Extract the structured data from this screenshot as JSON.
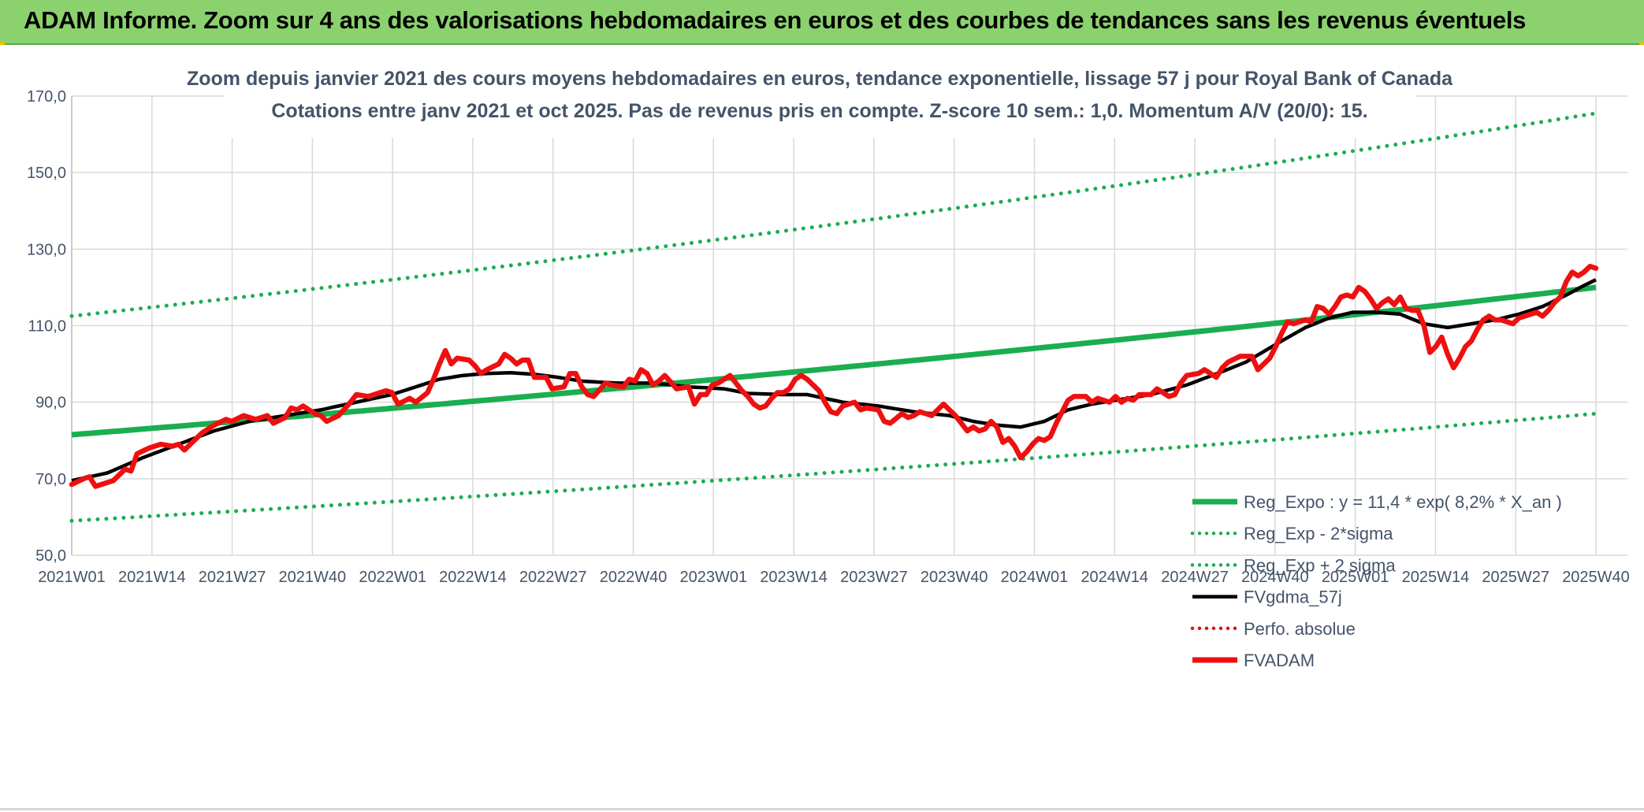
{
  "header": {
    "title": "ADAM Informe. Zoom sur 4 ans des valorisations hebdomadaires en euros et des courbes de tendances sans les revenus éventuels"
  },
  "colors": {
    "header_bg": "#8bd26e",
    "reg_expo": "#1aae4f",
    "fvgdma": "#000000",
    "perfo": "#e01010",
    "fvadam": "#ee1010",
    "grid": "#d9d9d9",
    "text": "#44546a"
  },
  "chart_data": {
    "type": "line",
    "title_line1": "Zoom depuis janvier 2021 des cours moyens hebdomadaires en euros, tendance exponentielle, lissage 57 j pour Royal Bank of Canada",
    "title_line2": "Cotations entre janv 2021 et oct 2025. Pas de revenus pris en compte. Z-score 10 sem.: 1,0. Momentum A/V (20/0): 15.",
    "ylim": [
      50,
      170
    ],
    "yticks": [
      "50,0",
      "70,0",
      "90,0",
      "110,0",
      "130,0",
      "150,0",
      "170,0"
    ],
    "ytick_values": [
      50,
      70,
      90,
      110,
      130,
      150,
      170
    ],
    "xticks": [
      "2021W01",
      "2021W14",
      "2021W27",
      "2021W40",
      "2022W01",
      "2022W14",
      "2022W27",
      "2022W40",
      "2023W01",
      "2023W14",
      "2023W27",
      "2023W40",
      "2024W01",
      "2024W14",
      "2024W27",
      "2024W40",
      "2025W01",
      "2025W14",
      "2025W27",
      "2025W40"
    ],
    "weeks_total": 248,
    "grid": true,
    "legend": [
      {
        "name": "Reg_Expo : y = 11,4 * exp( 8,2% * X_an )",
        "style": "solid-thick",
        "color": "#1aae4f"
      },
      {
        "name": "Reg_Exp - 2*sigma",
        "style": "dotted",
        "color": "#1aae4f"
      },
      {
        "name": "Reg_Exp + 2 sigma",
        "style": "dotted",
        "color": "#1aae4f"
      },
      {
        "name": "FVgdma_57j",
        "style": "solid",
        "color": "#000000"
      },
      {
        "name": "Perfo. absolue",
        "style": "dotted",
        "color": "#e01010"
      },
      {
        "name": "FVADAM",
        "style": "solid-thick",
        "color": "#ee1010"
      }
    ],
    "reg_expo": {
      "start": 81.5,
      "end": 120.0
    },
    "reg_minus": {
      "start": 59.0,
      "end": 87.0
    },
    "reg_plus": {
      "start": 112.5,
      "end": 165.5
    },
    "fvadam_anchors": [
      [
        0,
        68.5
      ],
      [
        2,
        70.0
      ],
      [
        3,
        70.5
      ],
      [
        4,
        68.0
      ],
      [
        7,
        69.5
      ],
      [
        9,
        72.5
      ],
      [
        10,
        72.0
      ],
      [
        11,
        76.5
      ],
      [
        13,
        78.0
      ],
      [
        15,
        79.0
      ],
      [
        17,
        78.5
      ],
      [
        18,
        79.0
      ],
      [
        19,
        77.5
      ],
      [
        20,
        79.0
      ],
      [
        22,
        82.0
      ],
      [
        24,
        84.0
      ],
      [
        26,
        85.5
      ],
      [
        27,
        85.0
      ],
      [
        29,
        86.5
      ],
      [
        31,
        85.5
      ],
      [
        33,
        86.5
      ],
      [
        34,
        84.5
      ],
      [
        36,
        86.0
      ],
      [
        37,
        88.5
      ],
      [
        38,
        88.0
      ],
      [
        39,
        89.0
      ],
      [
        41,
        87.0
      ],
      [
        42,
        86.5
      ],
      [
        43,
        85.0
      ],
      [
        45,
        86.5
      ],
      [
        47,
        90.0
      ],
      [
        48,
        92.0
      ],
      [
        50,
        91.5
      ],
      [
        52,
        92.5
      ],
      [
        53,
        93.0
      ],
      [
        54,
        92.5
      ],
      [
        55,
        89.5
      ],
      [
        57,
        91.0
      ],
      [
        58,
        90.0
      ],
      [
        60,
        92.5
      ],
      [
        61,
        96.0
      ],
      [
        62,
        100.0
      ],
      [
        63,
        103.5
      ],
      [
        64,
        100.0
      ],
      [
        65,
        101.5
      ],
      [
        67,
        101.0
      ],
      [
        68,
        99.5
      ],
      [
        69,
        97.5
      ],
      [
        70,
        98.5
      ],
      [
        72,
        100.0
      ],
      [
        73,
        102.5
      ],
      [
        74,
        101.5
      ],
      [
        75,
        100.0
      ],
      [
        76,
        101.0
      ],
      [
        77,
        101.0
      ],
      [
        78,
        96.5
      ],
      [
        80,
        96.5
      ],
      [
        81,
        93.5
      ],
      [
        83,
        94.0
      ],
      [
        84,
        97.5
      ],
      [
        85,
        97.5
      ],
      [
        86,
        94.0
      ],
      [
        87,
        92.0
      ],
      [
        88,
        91.5
      ],
      [
        90,
        95.0
      ],
      [
        91,
        94.5
      ],
      [
        93,
        94.0
      ],
      [
        94,
        96.0
      ],
      [
        95,
        95.5
      ],
      [
        96,
        98.5
      ],
      [
        97,
        97.5
      ],
      [
        98,
        94.5
      ],
      [
        99,
        95.5
      ],
      [
        100,
        97.0
      ],
      [
        102,
        93.5
      ],
      [
        104,
        94.0
      ],
      [
        105,
        89.5
      ],
      [
        106,
        92.0
      ],
      [
        107,
        92.0
      ],
      [
        108,
        94.5
      ],
      [
        109,
        95.0
      ],
      [
        111,
        97.0
      ],
      [
        113,
        93.0
      ],
      [
        114,
        91.5
      ],
      [
        115,
        89.5
      ],
      [
        116,
        88.5
      ],
      [
        117,
        89.0
      ],
      [
        118,
        91.0
      ],
      [
        119,
        92.5
      ],
      [
        120,
        92.5
      ],
      [
        121,
        93.5
      ],
      [
        122,
        96.0
      ],
      [
        123,
        97.0
      ],
      [
        124,
        96.0
      ],
      [
        126,
        93.0
      ],
      [
        127,
        90.0
      ],
      [
        128,
        87.5
      ],
      [
        129,
        87.0
      ],
      [
        130,
        89.0
      ],
      [
        131,
        89.5
      ],
      [
        132,
        90.0
      ],
      [
        133,
        88.0
      ],
      [
        134,
        88.5
      ],
      [
        136,
        88.0
      ],
      [
        137,
        85.0
      ],
      [
        138,
        84.5
      ],
      [
        140,
        87.0
      ],
      [
        141,
        86.0
      ],
      [
        142,
        86.5
      ],
      [
        143,
        87.5
      ],
      [
        144,
        87.0
      ],
      [
        145,
        86.5
      ],
      [
        147,
        89.5
      ],
      [
        149,
        86.5
      ],
      [
        150,
        84.5
      ],
      [
        151,
        82.5
      ],
      [
        152,
        83.5
      ],
      [
        153,
        82.5
      ],
      [
        154,
        83.0
      ],
      [
        155,
        85.0
      ],
      [
        156,
        83.5
      ],
      [
        157,
        79.5
      ],
      [
        158,
        80.5
      ],
      [
        159,
        78.5
      ],
      [
        160,
        75.5
      ],
      [
        161,
        77.0
      ],
      [
        162,
        79.0
      ],
      [
        163,
        80.5
      ],
      [
        164,
        80.0
      ],
      [
        165,
        81.0
      ],
      [
        166,
        84.5
      ],
      [
        167,
        87.5
      ],
      [
        168,
        90.5
      ],
      [
        169,
        91.5
      ],
      [
        171,
        91.5
      ],
      [
        172,
        90.0
      ],
      [
        173,
        91.0
      ],
      [
        175,
        90.0
      ],
      [
        176,
        91.5
      ],
      [
        177,
        90.0
      ],
      [
        178,
        91.0
      ],
      [
        179,
        90.5
      ],
      [
        180,
        92.0
      ],
      [
        182,
        92.0
      ],
      [
        183,
        93.5
      ],
      [
        184,
        92.5
      ],
      [
        185,
        91.5
      ],
      [
        186,
        92.0
      ],
      [
        187,
        95.0
      ],
      [
        188,
        97.0
      ],
      [
        190,
        97.5
      ],
      [
        191,
        98.5
      ],
      [
        193,
        96.5
      ],
      [
        194,
        99.0
      ],
      [
        195,
        100.5
      ],
      [
        197,
        102.0
      ],
      [
        199,
        102.0
      ],
      [
        200,
        98.5
      ],
      [
        202,
        101.5
      ],
      [
        203,
        104.5
      ],
      [
        204,
        108.0
      ],
      [
        205,
        111.0
      ],
      [
        206,
        110.5
      ],
      [
        207,
        111.0
      ],
      [
        208,
        111.5
      ],
      [
        209,
        111.0
      ],
      [
        210,
        115.0
      ],
      [
        211,
        114.5
      ],
      [
        212,
        113.0
      ],
      [
        213,
        115.0
      ],
      [
        214,
        117.5
      ],
      [
        215,
        118.0
      ],
      [
        216,
        117.5
      ],
      [
        217,
        120.0
      ],
      [
        218,
        119.0
      ],
      [
        219,
        117.0
      ],
      [
        220,
        114.5
      ],
      [
        221,
        116.0
      ],
      [
        222,
        117.0
      ],
      [
        223,
        115.5
      ],
      [
        224,
        117.5
      ],
      [
        225,
        114.5
      ],
      [
        226,
        114.0
      ],
      [
        227,
        114.0
      ],
      [
        228,
        110.0
      ],
      [
        229,
        103.0
      ],
      [
        230,
        104.5
      ],
      [
        231,
        107.0
      ],
      [
        232,
        102.5
      ],
      [
        233,
        99.0
      ],
      [
        234,
        101.5
      ],
      [
        235,
        104.5
      ],
      [
        236,
        106.0
      ],
      [
        237,
        109.0
      ],
      [
        238,
        111.5
      ],
      [
        239,
        112.5
      ],
      [
        240,
        111.5
      ],
      [
        241,
        111.5
      ],
      [
        242,
        111.0
      ],
      [
        243,
        110.5
      ],
      [
        244,
        112.0
      ],
      [
        245,
        112.5
      ],
      [
        246,
        113.0
      ],
      [
        247,
        113.5
      ],
      [
        248,
        112.5
      ],
      [
        249,
        114.0
      ],
      [
        250,
        116.0
      ],
      [
        251,
        117.5
      ],
      [
        252,
        121.5
      ],
      [
        253,
        124.0
      ],
      [
        254,
        123.0
      ],
      [
        255,
        124.0
      ],
      [
        256,
        125.5
      ],
      [
        257,
        125.0
      ]
    ],
    "fvgdma_anchors": [
      [
        0,
        69.5
      ],
      [
        6,
        71.5
      ],
      [
        12,
        75.5
      ],
      [
        18,
        79.0
      ],
      [
        24,
        82.5
      ],
      [
        30,
        85.0
      ],
      [
        36,
        86.5
      ],
      [
        42,
        88.0
      ],
      [
        48,
        90.0
      ],
      [
        54,
        92.0
      ],
      [
        58,
        94.0
      ],
      [
        62,
        96.0
      ],
      [
        66,
        97.0
      ],
      [
        70,
        97.5
      ],
      [
        74,
        97.7
      ],
      [
        78,
        97.3
      ],
      [
        82,
        96.5
      ],
      [
        86,
        95.5
      ],
      [
        92,
        95.0
      ],
      [
        98,
        95.0
      ],
      [
        104,
        94.0
      ],
      [
        110,
        93.5
      ],
      [
        114,
        92.3
      ],
      [
        120,
        92.0
      ],
      [
        124,
        92.0
      ],
      [
        130,
        90.0
      ],
      [
        136,
        89.0
      ],
      [
        142,
        87.5
      ],
      [
        148,
        86.5
      ],
      [
        152,
        85.0
      ],
      [
        156,
        84.0
      ],
      [
        160,
        83.5
      ],
      [
        164,
        85.0
      ],
      [
        168,
        88.0
      ],
      [
        172,
        89.5
      ],
      [
        178,
        91.0
      ],
      [
        182,
        92.0
      ],
      [
        188,
        94.5
      ],
      [
        194,
        98.0
      ],
      [
        198,
        100.5
      ],
      [
        204,
        106.0
      ],
      [
        208,
        109.5
      ],
      [
        212,
        112.0
      ],
      [
        216,
        113.5
      ],
      [
        220,
        113.5
      ],
      [
        224,
        113.0
      ],
      [
        228,
        110.5
      ],
      [
        232,
        109.5
      ],
      [
        236,
        110.5
      ],
      [
        240,
        111.5
      ],
      [
        244,
        113.0
      ],
      [
        248,
        115.0
      ],
      [
        252,
        118.0
      ],
      [
        255,
        120.5
      ],
      [
        257,
        122.0
      ]
    ]
  }
}
